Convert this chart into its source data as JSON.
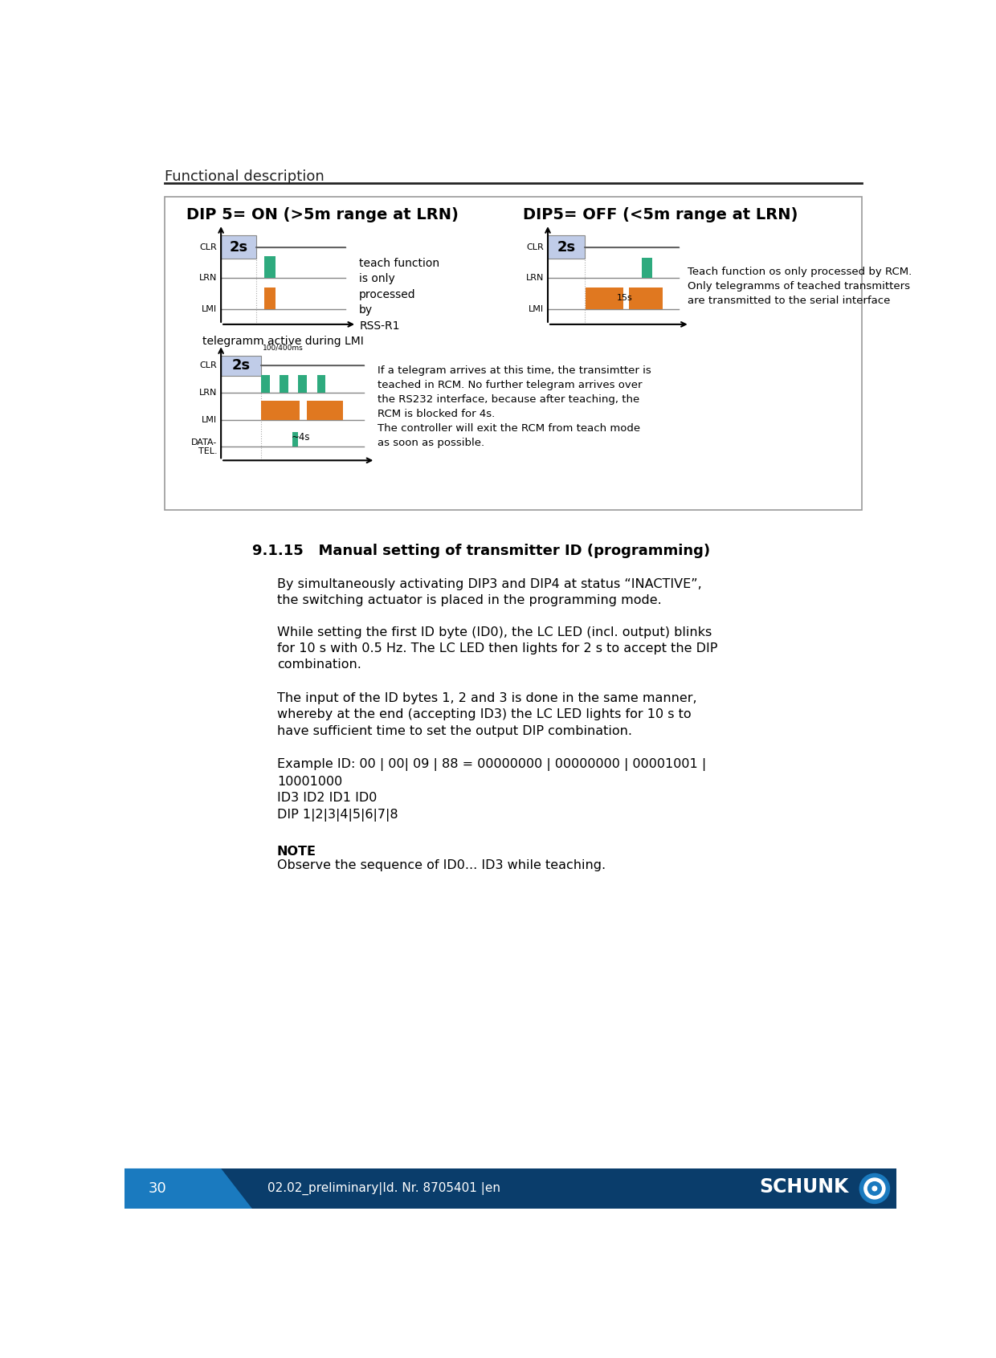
{
  "page_title": "Functional description",
  "page_number": "30",
  "doc_id": "02.02_preliminary|Id. Nr. 8705401 |en",
  "bg_color": "#ffffff",
  "border_color": "#aaaaaa",
  "header_line_color": "#000000",
  "footer_bg": "#0a3d6b",
  "footer_accent": "#1a7abf",
  "section_title": "9.1.15   Manual setting of transmitter ID (programming)",
  "paragraphs": [
    "By simultaneously activating DIP3 and DIP4 at status “INACTIVE”,\nthe switching actuator is placed in the programming mode.",
    "While setting the first ID byte (ID0), the LC LED (incl. output) blinks\nfor 10 s with 0.5 Hz. The LC LED then lights for 2 s to accept the DIP\ncombination.",
    "The input of the ID bytes 1, 2 and 3 is done in the same manner,\nwhereby at the end (accepting ID3) the LC LED lights for 10 s to\nhave sufficient time to set the output DIP combination.",
    "Example ID: 00 | 00| 09 | 88 = 00000000 | 00000000 | 00001001 |\n10001000\nID3 ID2 ID1 ID0\nDIP 1|2|3|4|5|6|7|8"
  ],
  "note_title": "NOTE",
  "note_text": "Observe the sequence of ID0... ID3 while teaching.",
  "diagram_title_left": "DIP 5= ON (>5m range at LRN)",
  "diagram_title_right": "DIP5= OFF (<5m range at LRN)",
  "green_color": "#2eaa7e",
  "orange_color": "#e07820",
  "clr_box_color": "#c0cce8",
  "diagram_caption_left": "telegramm active during LMI",
  "diagram_caption_right": "Teach function os only processed by RCM.\nOnly telegramms of teached transmitters\nare transmitted to the serial interface",
  "bottom_text": "If a telegram arrives at this time, the transimtter is\nteached in RCM. No further telegram arrives over\nthe RS232 interface, because after teaching, the\nRCM is blocked for 4s.\nThe controller will exit the RCM from teach mode\nas soon as possible.",
  "teach_text": "teach function\nis only\nprocessed\nby\nRSS-R1"
}
